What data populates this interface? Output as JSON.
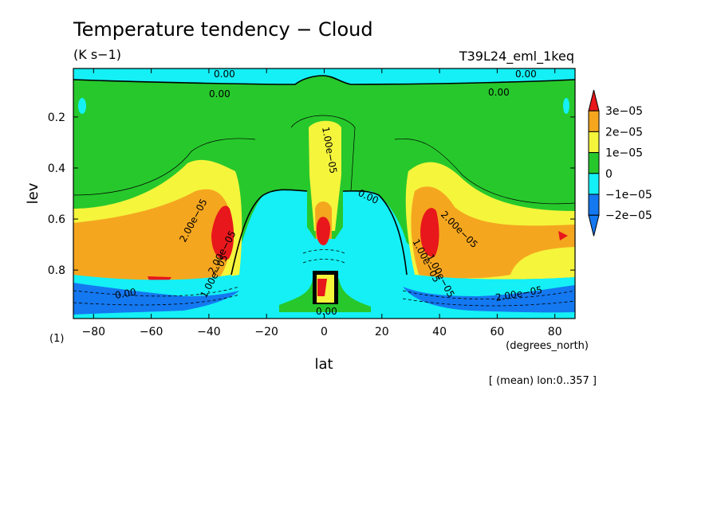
{
  "chart_data": {
    "type": "heatmap",
    "title": "Temperature tendency − Cloud",
    "units": "(K s−1)",
    "experiment": "T39L24_eml_1keq",
    "xlabel": "lat",
    "xunits": "(degrees_north)",
    "ylabel": "lev",
    "yunits": "(1)",
    "footnote": "[ (mean) lon:0..357 ]",
    "xlim": [
      -87,
      87
    ],
    "ylim": [
      0.01,
      0.99
    ],
    "y_inverted": true,
    "x_ticks": [
      "−80",
      "−60",
      "−40",
      "−20",
      "0",
      "20",
      "40",
      "60",
      "80"
    ],
    "x_tick_values": [
      -80,
      -60,
      -40,
      -20,
      0,
      20,
      40,
      60,
      80
    ],
    "y_ticks": [
      "0.2",
      "0.4",
      "0.6",
      "0.8"
    ],
    "y_tick_values": [
      0.2,
      0.4,
      0.6,
      0.8
    ],
    "colorbar": {
      "labels": [
        "3e−05",
        "2e−05",
        "1e−05",
        "0",
        "−1e−05",
        "−2e−05"
      ],
      "colors": [
        "#e8171b",
        "#f5a61f",
        "#f5f53c",
        "#27c82c",
        "#14f0f5",
        "#1478f0",
        "#1478f0"
      ]
    },
    "contour_labels": [
      "0.00",
      "0.00",
      "0.00",
      "0.00",
      "0.00",
      "0.00",
      "0.00",
      "1.00e−05",
      "2.00e−05",
      "2.00e−05",
      "1.00e−05",
      "1.00e−05",
      "2.00e−05",
      "2.00e−05",
      "1.00e−05"
    ],
    "grid": false,
    "legend_position": "right"
  }
}
